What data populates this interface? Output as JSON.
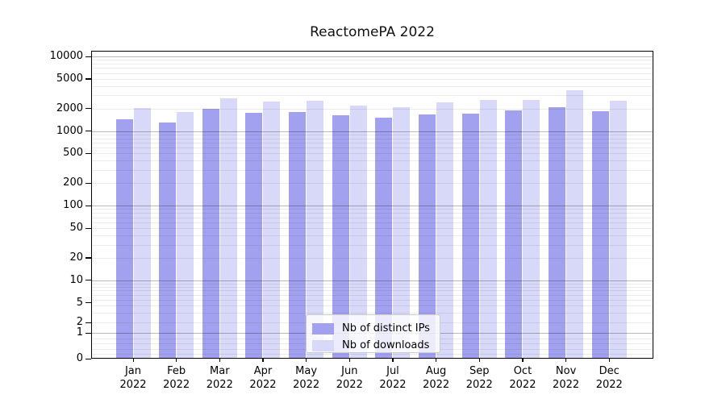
{
  "title": "ReactomePA 2022",
  "colors": {
    "distinct_ips": "#a1a1ef",
    "downloads": "#d8d8f8"
  },
  "legend": {
    "items": [
      {
        "label": "Nb of distinct IPs",
        "color": "#a1a1ef"
      },
      {
        "label": "Nb of downloads",
        "color": "#d8d8f8"
      }
    ]
  },
  "chart_data": {
    "type": "bar",
    "title": "ReactomePA 2022",
    "categories": [
      {
        "month": "Jan",
        "year": "2022"
      },
      {
        "month": "Feb",
        "year": "2022"
      },
      {
        "month": "Mar",
        "year": "2022"
      },
      {
        "month": "Apr",
        "year": "2022"
      },
      {
        "month": "May",
        "year": "2022"
      },
      {
        "month": "Jun",
        "year": "2022"
      },
      {
        "month": "Jul",
        "year": "2022"
      },
      {
        "month": "Aug",
        "year": "2022"
      },
      {
        "month": "Sep",
        "year": "2022"
      },
      {
        "month": "Oct",
        "year": "2022"
      },
      {
        "month": "Nov",
        "year": "2022"
      },
      {
        "month": "Dec",
        "year": "2022"
      }
    ],
    "series": [
      {
        "name": "Nb of distinct IPs",
        "color": "#a1a1ef",
        "values": [
          1450,
          1290,
          1970,
          1740,
          1790,
          1640,
          1520,
          1660,
          1710,
          1870,
          2090,
          1830
        ]
      },
      {
        "name": "Nb of downloads",
        "color": "#d8d8f8",
        "values": [
          2060,
          1810,
          2750,
          2490,
          2520,
          2200,
          2070,
          2400,
          2590,
          2620,
          3490,
          2550
        ]
      }
    ],
    "xlabel": "",
    "ylabel": "",
    "yscale": "symlog",
    "y_tick_labels": [
      "10000",
      "5000",
      "2000",
      "1000",
      "500",
      "200",
      "100",
      "50",
      "20",
      "10",
      "5",
      "2",
      "1",
      "0"
    ],
    "ylim": [
      0,
      13000
    ],
    "grid": true,
    "legend_position": "lower center"
  }
}
